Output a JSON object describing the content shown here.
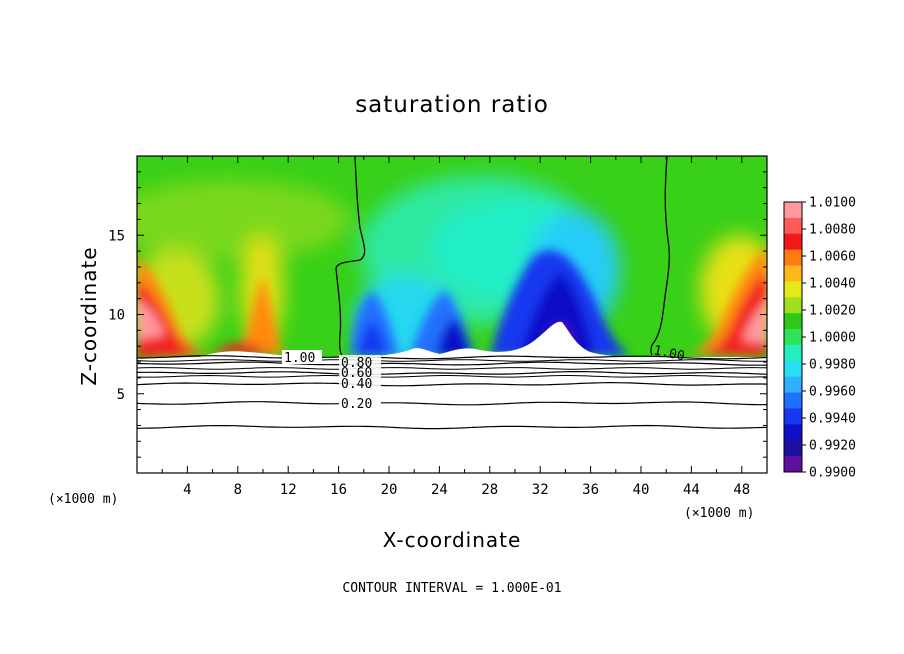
{
  "chart_data": {
    "type": "heatmap",
    "title": "saturation ratio",
    "xlabel": "X-coordinate",
    "ylabel": "Z-coordinate",
    "x_unit_left": "(×1000 m)",
    "x_unit_right": "(×1000 m)",
    "xlim": [
      0,
      50
    ],
    "ylim": [
      0,
      20
    ],
    "x_ticks": [
      4,
      8,
      12,
      16,
      20,
      24,
      28,
      32,
      36,
      40,
      44,
      48
    ],
    "y_ticks": [
      5,
      10,
      15
    ],
    "footer": "CONTOUR INTERVAL = 1.000E-01",
    "colorbar": {
      "levels": [
        "1.0100",
        "1.0080",
        "1.0060",
        "1.0040",
        "1.0020",
        "1.0000",
        "0.9980",
        "0.9960",
        "0.9940",
        "0.9920",
        "0.9900"
      ],
      "colors": [
        "#ff9aa0",
        "#ff5a5a",
        "#f01818",
        "#ff7a10",
        "#ffb81c",
        "#e8e818",
        "#a0e020",
        "#30c818",
        "#2ee35a",
        "#22eec0",
        "#28e0f0",
        "#30b0ff",
        "#2070ff",
        "#1838f0",
        "#1010c8",
        "#2010a0",
        "#6010a0"
      ]
    },
    "contour_labels": [
      "1.00",
      "0.80",
      "0.60",
      "0.40",
      "0.20",
      "1.00"
    ],
    "contour_lines": [
      {
        "label": "0.20",
        "z": 4.4
      },
      {
        "label": "",
        "z": 2.9
      },
      {
        "label": "0.40",
        "z": 5.6
      },
      {
        "label": "0.60",
        "z": 6.3
      },
      {
        "label": "0.80",
        "z": 6.9
      },
      {
        "label": "1.00",
        "z": 7.3
      }
    ]
  }
}
